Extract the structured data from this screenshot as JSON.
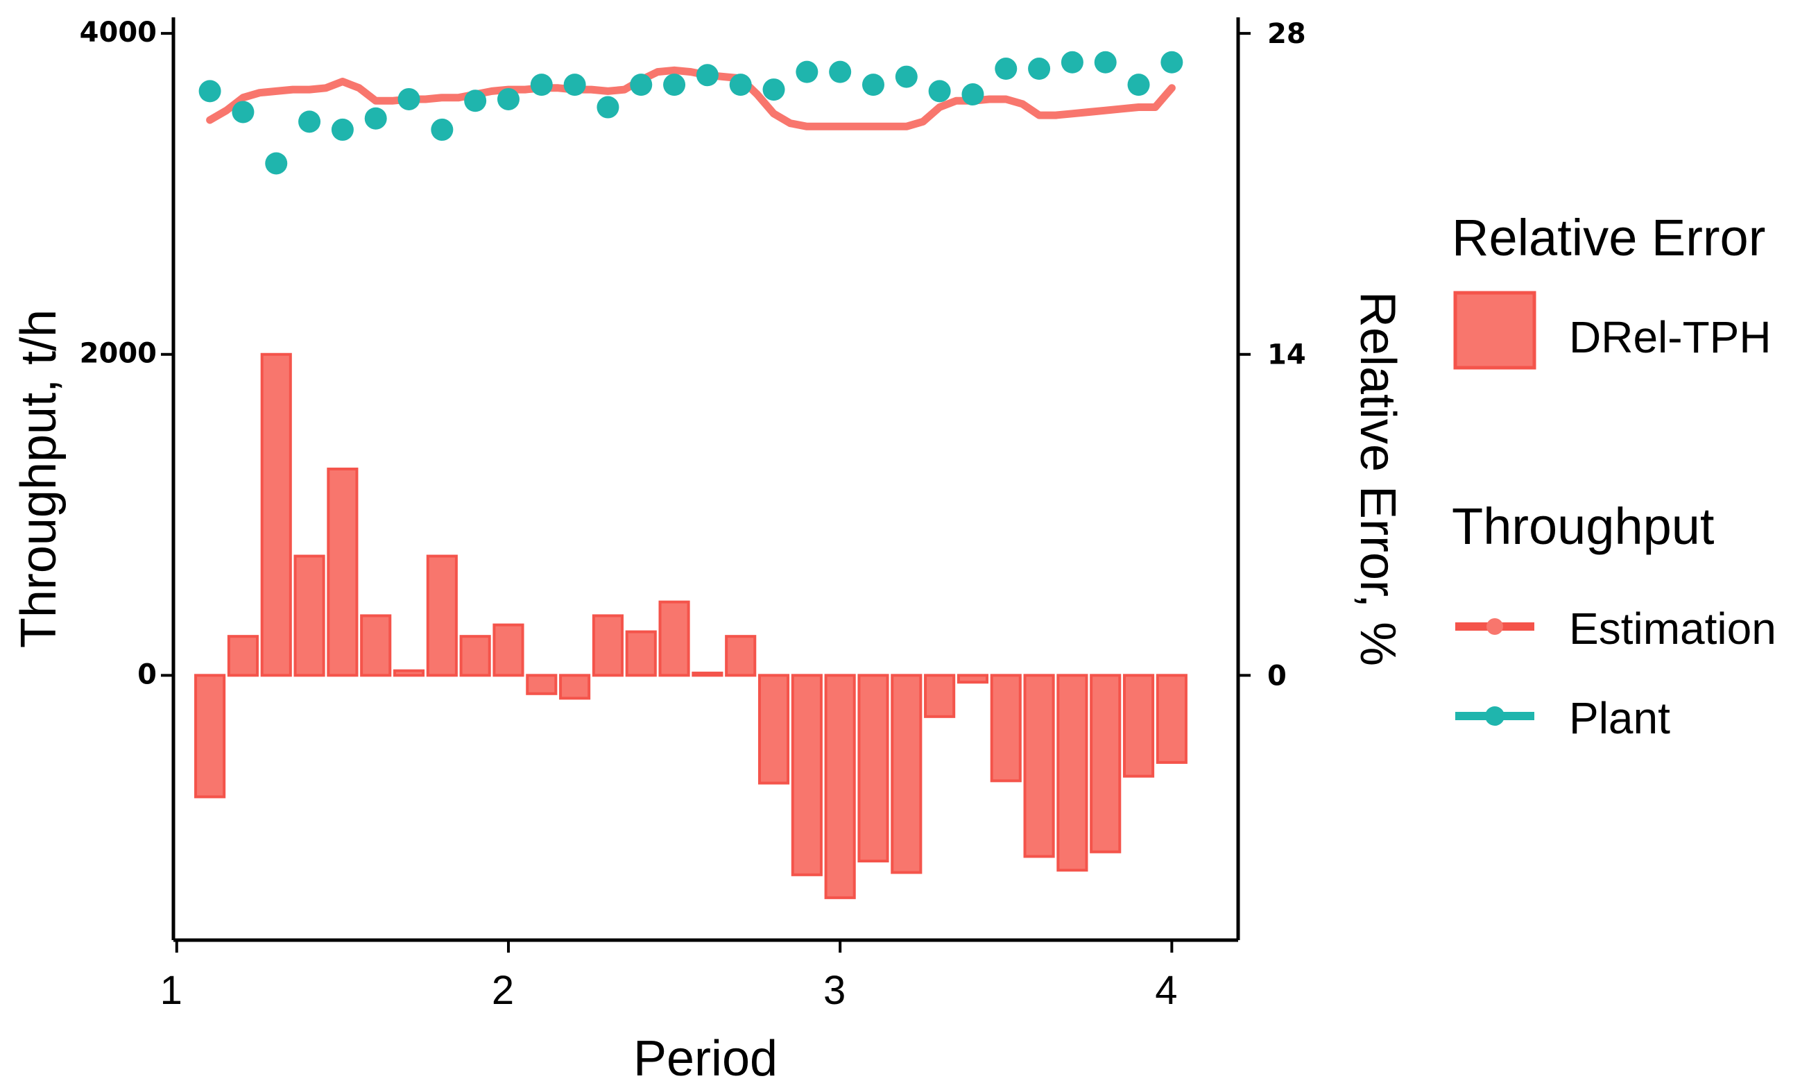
{
  "chart_data": {
    "type": "bar+line+scatter",
    "x_axis": {
      "label": "Period",
      "ticks": [
        1,
        2,
        3,
        4
      ],
      "range": [
        0.99,
        4.2
      ]
    },
    "left_axis": {
      "label": "Throughput, t/h",
      "ticks": [
        0,
        2000,
        4000
      ],
      "tick_labels": [
        "0",
        "2000",
        "4000"
      ],
      "range": [
        -1650,
        4100
      ]
    },
    "right_axis": {
      "label": "Relative Error, %",
      "ticks": [
        0,
        14,
        28
      ],
      "tick_labels": [
        "0",
        "14",
        "28"
      ],
      "range": [
        -11.55,
        28.7
      ]
    },
    "colors": {
      "error": "#F8766D",
      "error_stroke": "#F4544B",
      "estimation": "#F8766D",
      "plant": "#1FB5AD"
    },
    "legend": {
      "relative_error_title": "Relative Error",
      "relative_error_items": [
        "DRel-TPH"
      ],
      "throughput_title": "Throughput",
      "throughput_items": [
        "Estimation",
        "Plant"
      ]
    },
    "series": [
      {
        "name": "DRel-TPH",
        "type": "bar",
        "axis": "right",
        "x": [
          1.1,
          1.2,
          1.3,
          1.4,
          1.5,
          1.6,
          1.7,
          1.8,
          1.9,
          2.0,
          2.1,
          2.2,
          2.3,
          2.4,
          2.5,
          2.6,
          2.7,
          2.8,
          2.9,
          3.0,
          3.1,
          3.2,
          3.3,
          3.4,
          3.5,
          3.6,
          3.7,
          3.8,
          3.9,
          4.0
        ],
        "values": [
          -5.3,
          1.7,
          14.0,
          5.2,
          9.0,
          2.6,
          0.2,
          5.2,
          1.7,
          2.2,
          -0.8,
          -1.0,
          2.6,
          1.9,
          3.2,
          0.1,
          1.7,
          -4.7,
          -8.7,
          -9.7,
          -8.1,
          -8.6,
          -1.8,
          -0.3,
          -4.6,
          -7.9,
          -8.5,
          -7.7,
          -4.4,
          -3.8
        ]
      },
      {
        "name": "Estimation",
        "type": "line",
        "axis": "left",
        "x": [
          1.1,
          1.15,
          1.2,
          1.25,
          1.3,
          1.35,
          1.4,
          1.45,
          1.5,
          1.55,
          1.6,
          1.65,
          1.7,
          1.75,
          1.8,
          1.85,
          1.9,
          1.95,
          2.0,
          2.05,
          2.1,
          2.15,
          2.2,
          2.25,
          2.3,
          2.35,
          2.4,
          2.45,
          2.5,
          2.55,
          2.6,
          2.65,
          2.7,
          2.75,
          2.8,
          2.85,
          2.9,
          2.95,
          3.0,
          3.05,
          3.1,
          3.15,
          3.2,
          3.25,
          3.3,
          3.35,
          3.4,
          3.45,
          3.5,
          3.55,
          3.6,
          3.65,
          3.7,
          3.75,
          3.8,
          3.85,
          3.9,
          3.95,
          4.0
        ],
        "values": [
          3460,
          3520,
          3600,
          3630,
          3640,
          3650,
          3650,
          3660,
          3700,
          3660,
          3580,
          3580,
          3590,
          3590,
          3600,
          3600,
          3620,
          3640,
          3650,
          3650,
          3660,
          3660,
          3650,
          3650,
          3640,
          3650,
          3710,
          3760,
          3770,
          3760,
          3740,
          3730,
          3720,
          3620,
          3500,
          3440,
          3420,
          3420,
          3420,
          3420,
          3420,
          3420,
          3420,
          3450,
          3540,
          3580,
          3580,
          3590,
          3590,
          3560,
          3490,
          3490,
          3500,
          3510,
          3520,
          3530,
          3540,
          3540,
          3660
        ]
      },
      {
        "name": "Plant",
        "type": "scatter",
        "axis": "left",
        "x": [
          1.1,
          1.2,
          1.3,
          1.4,
          1.5,
          1.6,
          1.7,
          1.8,
          1.9,
          2.0,
          2.1,
          2.2,
          2.3,
          2.4,
          2.5,
          2.6,
          2.7,
          2.8,
          2.9,
          3.0,
          3.1,
          3.2,
          3.3,
          3.4,
          3.5,
          3.6,
          3.7,
          3.8,
          3.9,
          4.0
        ],
        "values": [
          3640,
          3510,
          3190,
          3450,
          3400,
          3470,
          3590,
          3400,
          3580,
          3590,
          3680,
          3680,
          3540,
          3680,
          3680,
          3740,
          3680,
          3650,
          3760,
          3760,
          3680,
          3730,
          3640,
          3620,
          3780,
          3780,
          3820,
          3820,
          3680,
          3820
        ]
      }
    ]
  }
}
